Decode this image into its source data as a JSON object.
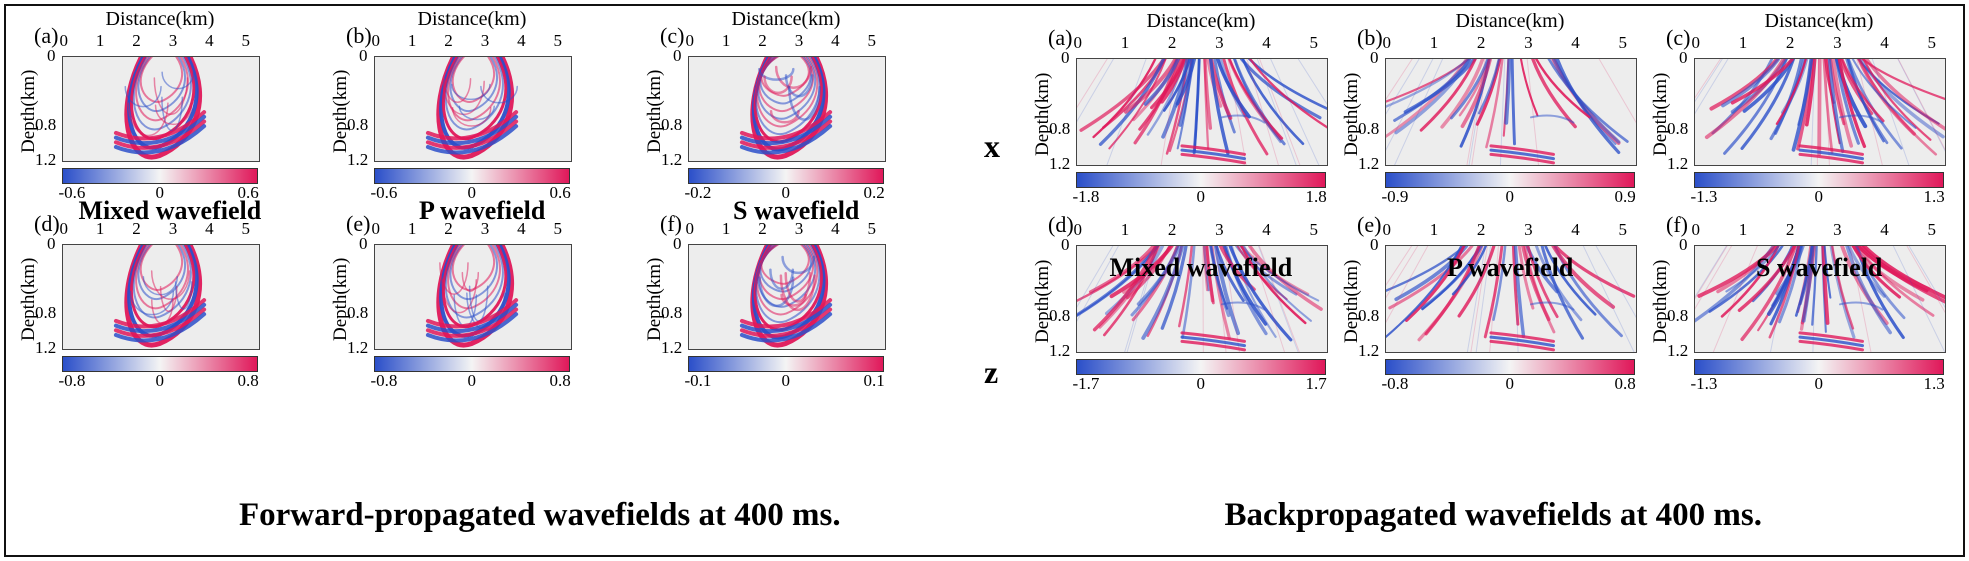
{
  "colors": {
    "background": "#ededed",
    "negative": "#2b4fc9",
    "neutral": "#f4f4f4",
    "positive": "#e0185a"
  },
  "axes": {
    "x_title": "Distance(km)",
    "x_ticks": [
      "0",
      "1",
      "2",
      "3",
      "4",
      "5"
    ],
    "y_title": "Depth(km)",
    "y_ticks": [
      "0",
      "0.8",
      "1.2"
    ]
  },
  "groups": {
    "forward": {
      "caption": "Forward-propagated wavefields at 400 ms.",
      "column_titles": [
        "Mixed wavefield",
        "P wavefield",
        "S wavefield"
      ],
      "rows": [
        {
          "panels": [
            {
              "label": "(a)",
              "colorbar": {
                "min": "-0.6",
                "mid": "0",
                "max": "0.6"
              }
            },
            {
              "label": "(b)",
              "colorbar": {
                "min": "-0.6",
                "mid": "0",
                "max": "0.6"
              }
            },
            {
              "label": "(c)",
              "colorbar": {
                "min": "-0.2",
                "mid": "0",
                "max": "0.2"
              }
            }
          ]
        },
        {
          "panels": [
            {
              "label": "(d)",
              "colorbar": {
                "min": "-0.8",
                "mid": "0",
                "max": "0.8"
              }
            },
            {
              "label": "(e)",
              "colorbar": {
                "min": "-0.8",
                "mid": "0",
                "max": "0.8"
              }
            },
            {
              "label": "(f)",
              "colorbar": {
                "min": "-0.1",
                "mid": "0",
                "max": "0.1"
              }
            }
          ]
        }
      ]
    },
    "back": {
      "caption": "Backpropagated wavefields at 400 ms.",
      "column_titles": [
        "Mixed wavefield",
        "P wavefield",
        "S wavefield"
      ],
      "row_labels": [
        "x",
        "z"
      ],
      "rows": [
        {
          "panels": [
            {
              "label": "(a)",
              "colorbar": {
                "min": "-1.8",
                "mid": "0",
                "max": "1.8"
              }
            },
            {
              "label": "(b)",
              "colorbar": {
                "min": "-0.9",
                "mid": "0",
                "max": "0.9"
              }
            },
            {
              "label": "(c)",
              "colorbar": {
                "min": "-1.3",
                "mid": "0",
                "max": "1.3"
              }
            }
          ]
        },
        {
          "panels": [
            {
              "label": "(d)",
              "colorbar": {
                "min": "-1.7",
                "mid": "0",
                "max": "1.7"
              }
            },
            {
              "label": "(e)",
              "colorbar": {
                "min": "-0.8",
                "mid": "0",
                "max": "0.8"
              }
            },
            {
              "label": "(f)",
              "colorbar": {
                "min": "-1.3",
                "mid": "0",
                "max": "1.3"
              }
            }
          ]
        }
      ]
    }
  }
}
